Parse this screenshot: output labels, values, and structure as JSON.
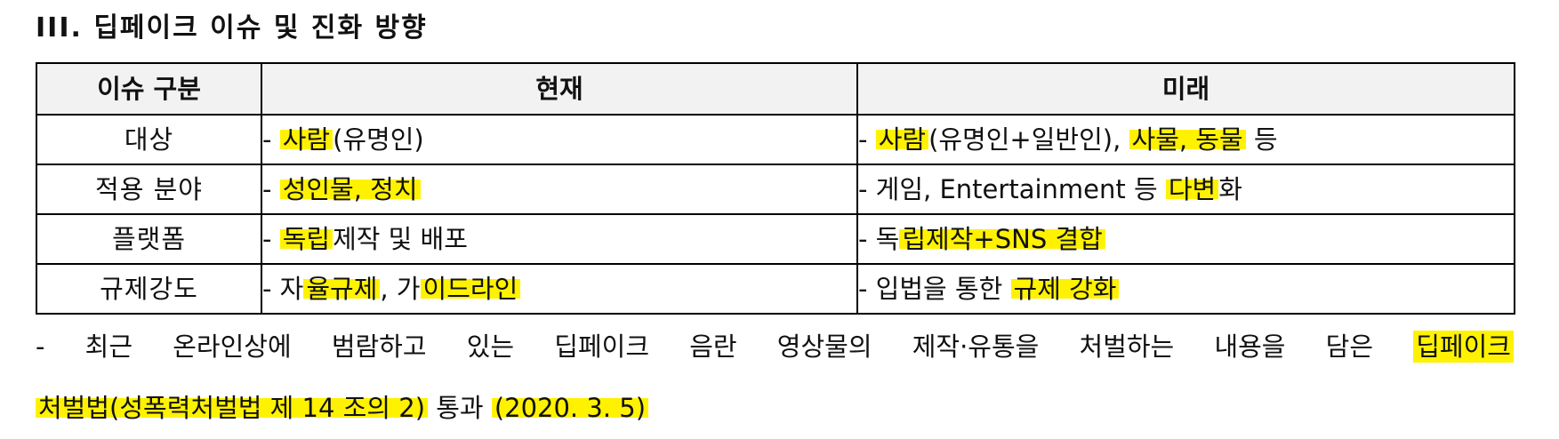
{
  "heading": "III. 딥페이크 이슈 및 진화 방향",
  "table": {
    "headers": [
      "이슈 구분",
      "현재",
      "미래"
    ],
    "rows": [
      {
        "category": "대상",
        "current": {
          "prefix": "- ",
          "highlight": "사람",
          "rest": "(유명인)"
        },
        "future": {
          "prefix": "- ",
          "highlight": "사람",
          "mid": "(유명인+일반인), ",
          "highlight2": "사물, 동물",
          "rest": " 등"
        }
      },
      {
        "category": "적용 분야",
        "current": {
          "prefix": "- ",
          "highlight": "성인물, 정치",
          "rest": ""
        },
        "future": {
          "prefix": "- 게임, Entertainment 등 ",
          "highlight": "다변",
          "rest": "화"
        }
      },
      {
        "category": "플랫폼",
        "current": {
          "prefix": "- ",
          "highlight": "독립",
          "rest": "제작 및 배포"
        },
        "future": {
          "prefix": "- 독",
          "highlight": "립제작+SNS 결합",
          "rest": ""
        }
      },
      {
        "category": "규제강도",
        "current": {
          "prefix": "- 자",
          "highlight": "율규제",
          "mid": ", 가",
          "highlight2": "이드라인",
          "rest": ""
        },
        "future": {
          "prefix": "- 입법을 통한 ",
          "highlight": "규제 강화",
          "rest": ""
        }
      }
    ]
  },
  "note": {
    "line1_words": [
      "-",
      "최근",
      "온라인상에",
      "범람하고",
      "있는",
      "딥페이크",
      "음란",
      "영상물의",
      "제작·유통을",
      "처벌하는",
      "내용을",
      "담은"
    ],
    "line1_highlight": "딥페이크",
    "line2_highlight1": "처벌법(성폭력처벌법 제 14 조의 2)",
    "line2_mid": " 통과 ",
    "line2_highlight2": "(2020. 3. 5)"
  },
  "colors": {
    "highlight": "#fff200",
    "header_bg": "#f2f2f2",
    "border": "#000000"
  }
}
